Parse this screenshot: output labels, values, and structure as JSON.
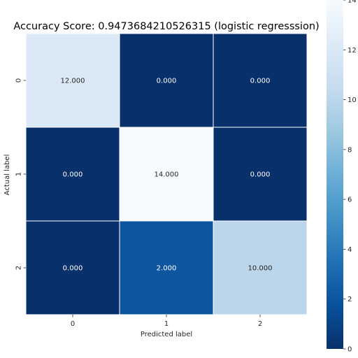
{
  "chart_data": {
    "type": "heatmap",
    "title": "Accuracy Score: 0.9473684210526315 (logistic regresssion)",
    "xlabel": "Predicted label",
    "ylabel": "Actual label",
    "x_categories": [
      "0",
      "1",
      "2"
    ],
    "y_categories": [
      "0",
      "1",
      "2"
    ],
    "values": [
      [
        12,
        0,
        0
      ],
      [
        0,
        14,
        0
      ],
      [
        0,
        2,
        10
      ]
    ],
    "value_labels": [
      [
        "12.000",
        "0.000",
        "0.000"
      ],
      [
        "0.000",
        "14.000",
        "0.000"
      ],
      [
        "0.000",
        "2.000",
        "10.000"
      ]
    ],
    "colormap": "Blues_r",
    "color_range": [
      0,
      14
    ],
    "colorbar_ticks": [
      0,
      2,
      4,
      6,
      8,
      10,
      12,
      14
    ],
    "cell_border_color": "#ffffff",
    "legend": "colorbar-right"
  }
}
